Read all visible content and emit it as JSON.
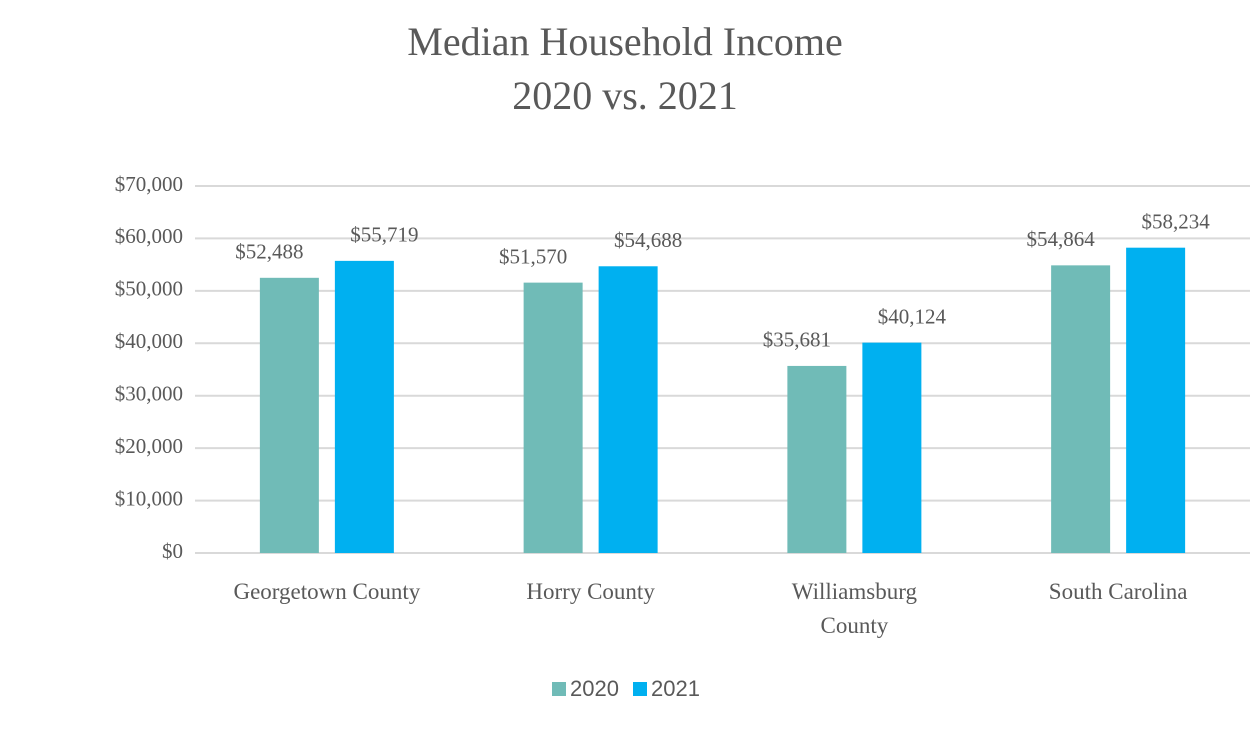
{
  "chart_data": {
    "type": "bar",
    "title": "Median Household Income",
    "subtitle": "2020 vs. 2021",
    "categories": [
      "Georgetown County",
      "Horry County",
      "Williamsburg County",
      "South Carolina"
    ],
    "series": [
      {
        "name": "2020",
        "color": "#70bbb7",
        "values": [
          52488,
          51570,
          35681,
          54864
        ],
        "value_labels": [
          "$52,488",
          "$51,570",
          "$35,681",
          "$54,864"
        ]
      },
      {
        "name": "2021",
        "color": "#00b0f0",
        "values": [
          55719,
          54688,
          40124,
          58234
        ],
        "value_labels": [
          "$55,719",
          "$54,688",
          "$40,124",
          "$58,234"
        ]
      }
    ],
    "ylim": [
      0,
      70000
    ],
    "yticks": [
      {
        "value": 0,
        "label": "$0"
      },
      {
        "value": 10000,
        "label": "$10,000"
      },
      {
        "value": 20000,
        "label": "$20,000"
      },
      {
        "value": 30000,
        "label": "$30,000"
      },
      {
        "value": 40000,
        "label": "$40,000"
      },
      {
        "value": 50000,
        "label": "$50,000"
      },
      {
        "value": 60000,
        "label": "$60,000"
      },
      {
        "value": 70000,
        "label": "$70,000"
      }
    ],
    "grid": true,
    "legend": "bottom"
  }
}
